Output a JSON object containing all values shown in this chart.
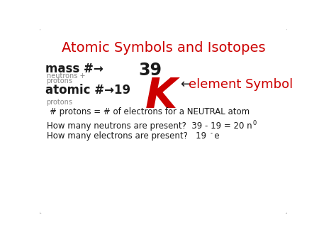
{
  "title": "Atomic Symbols and Isotopes",
  "title_color": "#cc0000",
  "bg_color": "#ffffff",
  "border_color": "#bbbbbb",
  "text_black": "#1a1a1a",
  "text_red": "#cc0000",
  "text_gray": "#888888",
  "mass_label": "mass #→",
  "mass_sublabel": "neutrons +\nprotons",
  "atomic_label": "atomic #→19",
  "atomic_sublabel": "protons",
  "mass_number": "39",
  "element": "K",
  "arrow_black": "←",
  "element_symbol_label": "element Symbol",
  "neutral_text": "# protons = # of electrons for a NEUTRAL atom",
  "neutron_q": "How many neutrons are present?  39 - 19 = 20 n",
  "neutron_sup": "0",
  "electron_q": "How many electrons are present?   19   e",
  "electron_sup": "-"
}
